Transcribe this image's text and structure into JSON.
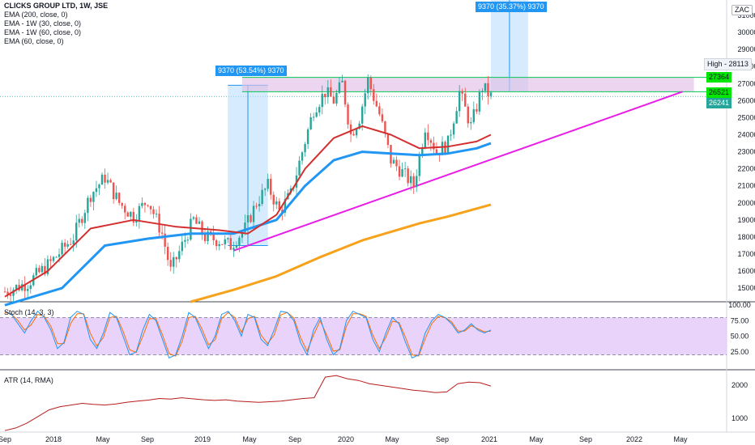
{
  "legend": {
    "title": "CLICKS GROUP LTD, 1W, JSE",
    "ema200": "EMA (200, close, 0)",
    "ema1w30": "EMA - 1W (30, close, 0)",
    "ema1w60": "EMA - 1W (60, close, 0)",
    "ema60": "EMA (60, close, 0)"
  },
  "currency": "ZAC",
  "price_tags": {
    "high": "High - 28113",
    "upper": "27364",
    "lower": "26521",
    "last": "26241"
  },
  "measure_labels": {
    "left": "9370 (53.54%) 9370",
    "right": "9370 (35.37%) 9370"
  },
  "panels": {
    "stoch": "Stoch (14, 3, 3)",
    "atr": "ATR (14, RMA)"
  },
  "colors": {
    "up": "#26a69a",
    "down": "#ef5350",
    "ema_red": "#d32f2f",
    "ema_blue": "#2196f3",
    "ema_orange": "#f7a21b",
    "trendline": "#e91ee6",
    "zone_fill": "#e1bee7",
    "zone_line": "#00c853",
    "stoch_fill": "#e1c4f8",
    "atr_line": "#b71c1c"
  },
  "chart_data": [
    {
      "type": "line",
      "name": "price",
      "x_ticks": [
        "Sep",
        "2018",
        "May",
        "Sep",
        "2019",
        "May",
        "Sep",
        "2020",
        "May",
        "Sep",
        "2021",
        "May",
        "Sep",
        "2022",
        "May"
      ],
      "y_ticks": [
        15000,
        16000,
        17000,
        18000,
        19000,
        20000,
        21000,
        22000,
        23000,
        24000,
        25000,
        26000,
        27000,
        28000,
        29000,
        30000,
        31000
      ],
      "ylim": [
        14200,
        31900
      ],
      "close_path": [
        {
          "x": 0,
          "y": 14800
        },
        {
          "x": 8,
          "y": 15300
        },
        {
          "x": 16,
          "y": 16500
        },
        {
          "x": 24,
          "y": 18000
        },
        {
          "x": 30,
          "y": 20500
        },
        {
          "x": 35,
          "y": 21500
        },
        {
          "x": 40,
          "y": 20000
        },
        {
          "x": 45,
          "y": 19200
        },
        {
          "x": 50,
          "y": 20200
        },
        {
          "x": 55,
          "y": 18200
        },
        {
          "x": 58,
          "y": 16000
        },
        {
          "x": 62,
          "y": 17500
        },
        {
          "x": 66,
          "y": 19000
        },
        {
          "x": 70,
          "y": 18000
        },
        {
          "x": 75,
          "y": 17800
        },
        {
          "x": 79,
          "y": 17500
        },
        {
          "x": 84,
          "y": 18500
        },
        {
          "x": 88,
          "y": 20000
        },
        {
          "x": 92,
          "y": 21000
        },
        {
          "x": 96,
          "y": 19500
        },
        {
          "x": 100,
          "y": 20500
        },
        {
          "x": 104,
          "y": 23000
        },
        {
          "x": 108,
          "y": 25500
        },
        {
          "x": 112,
          "y": 26500
        },
        {
          "x": 115,
          "y": 26000
        },
        {
          "x": 118,
          "y": 27000
        },
        {
          "x": 121,
          "y": 24000
        },
        {
          "x": 124,
          "y": 25000
        },
        {
          "x": 127,
          "y": 27200
        },
        {
          "x": 131,
          "y": 25200
        },
        {
          "x": 135,
          "y": 22500
        },
        {
          "x": 139,
          "y": 21800
        },
        {
          "x": 143,
          "y": 21000
        },
        {
          "x": 147,
          "y": 24500
        },
        {
          "x": 151,
          "y": 23000
        },
        {
          "x": 155,
          "y": 23500
        },
        {
          "x": 159,
          "y": 26500
        },
        {
          "x": 163,
          "y": 24500
        },
        {
          "x": 167,
          "y": 26800
        },
        {
          "x": 170,
          "y": 26241
        }
      ],
      "ema60": [
        {
          "x": 0,
          "y": 14000
        },
        {
          "x": 20,
          "y": 15000
        },
        {
          "x": 35,
          "y": 17500
        },
        {
          "x": 50,
          "y": 17900
        },
        {
          "x": 65,
          "y": 18200
        },
        {
          "x": 80,
          "y": 18200
        },
        {
          "x": 95,
          "y": 19000
        },
        {
          "x": 105,
          "y": 21000
        },
        {
          "x": 115,
          "y": 22500
        },
        {
          "x": 125,
          "y": 23000
        },
        {
          "x": 135,
          "y": 22900
        },
        {
          "x": 145,
          "y": 22800
        },
        {
          "x": 155,
          "y": 22900
        },
        {
          "x": 165,
          "y": 23200
        },
        {
          "x": 170,
          "y": 23500
        }
      ],
      "ema_red": [
        {
          "x": 0,
          "y": 14500
        },
        {
          "x": 15,
          "y": 16000
        },
        {
          "x": 30,
          "y": 18500
        },
        {
          "x": 45,
          "y": 19000
        },
        {
          "x": 60,
          "y": 18600
        },
        {
          "x": 75,
          "y": 18400
        },
        {
          "x": 85,
          "y": 18200
        },
        {
          "x": 95,
          "y": 19300
        },
        {
          "x": 105,
          "y": 22000
        },
        {
          "x": 115,
          "y": 23800
        },
        {
          "x": 125,
          "y": 24500
        },
        {
          "x": 135,
          "y": 24000
        },
        {
          "x": 145,
          "y": 23200
        },
        {
          "x": 155,
          "y": 23300
        },
        {
          "x": 165,
          "y": 23600
        },
        {
          "x": 170,
          "y": 24000
        }
      ],
      "ema200": [
        {
          "x": 65,
          "y": 14200
        },
        {
          "x": 80,
          "y": 14900
        },
        {
          "x": 95,
          "y": 15700
        },
        {
          "x": 110,
          "y": 16800
        },
        {
          "x": 125,
          "y": 17800
        },
        {
          "x": 135,
          "y": 18300
        },
        {
          "x": 145,
          "y": 18800
        },
        {
          "x": 155,
          "y": 19200
        },
        {
          "x": 170,
          "y": 19900
        }
      ],
      "resistance_zone": [
        26521,
        27364
      ],
      "high": 28113,
      "last": 26241
    },
    {
      "type": "line",
      "name": "Stoch (14, 3, 3)",
      "y_ticks": [
        25,
        50,
        75,
        100
      ],
      "ylim": [
        0,
        100
      ],
      "k": [
        90,
        85,
        70,
        55,
        75,
        90,
        80,
        60,
        30,
        40,
        80,
        90,
        85,
        45,
        30,
        55,
        88,
        80,
        50,
        20,
        25,
        60,
        85,
        75,
        45,
        15,
        20,
        50,
        88,
        80,
        55,
        30,
        50,
        85,
        90,
        75,
        50,
        85,
        80,
        45,
        35,
        60,
        90,
        88,
        75,
        40,
        20,
        60,
        80,
        45,
        20,
        30,
        75,
        90,
        85,
        80,
        45,
        25,
        55,
        80,
        70,
        40,
        15,
        20,
        55,
        75,
        85,
        80,
        70,
        55,
        60,
        70,
        60,
        55,
        60
      ],
      "d": [
        88,
        86,
        75,
        60,
        68,
        85,
        82,
        66,
        38,
        38,
        70,
        86,
        86,
        55,
        34,
        48,
        80,
        82,
        58,
        28,
        24,
        50,
        78,
        78,
        52,
        22,
        18,
        42,
        80,
        82,
        62,
        36,
        44,
        78,
        88,
        80,
        56,
        78,
        82,
        52,
        38,
        52,
        84,
        88,
        79,
        48,
        26,
        52,
        75,
        52,
        26,
        28,
        66,
        86,
        86,
        82,
        52,
        30,
        48,
        74,
        72,
        48,
        20,
        18,
        46,
        70,
        82,
        80,
        73,
        58,
        58,
        67,
        62,
        57,
        58
      ]
    },
    {
      "type": "line",
      "name": "ATR (14, RMA)",
      "y_ticks": [
        1000,
        2000
      ],
      "ylim": [
        600,
        2450
      ],
      "values": [
        620,
        700,
        850,
        1050,
        1250,
        1350,
        1400,
        1450,
        1420,
        1400,
        1430,
        1480,
        1520,
        1550,
        1600,
        1580,
        1620,
        1590,
        1560,
        1540,
        1560,
        1520,
        1500,
        1480,
        1500,
        1520,
        1560,
        1600,
        1620,
        2250,
        2300,
        2200,
        2150,
        2050,
        2000,
        1950,
        1900,
        1850,
        1820,
        1780,
        1800,
        2050,
        2100,
        2080,
        1980
      ]
    }
  ],
  "x_axis_labels": [
    "Sep",
    "2018",
    "May",
    "Sep",
    "2019",
    "May",
    "Sep",
    "2020",
    "May",
    "Sep",
    "2021",
    "May",
    "Sep",
    "2022",
    "May"
  ]
}
